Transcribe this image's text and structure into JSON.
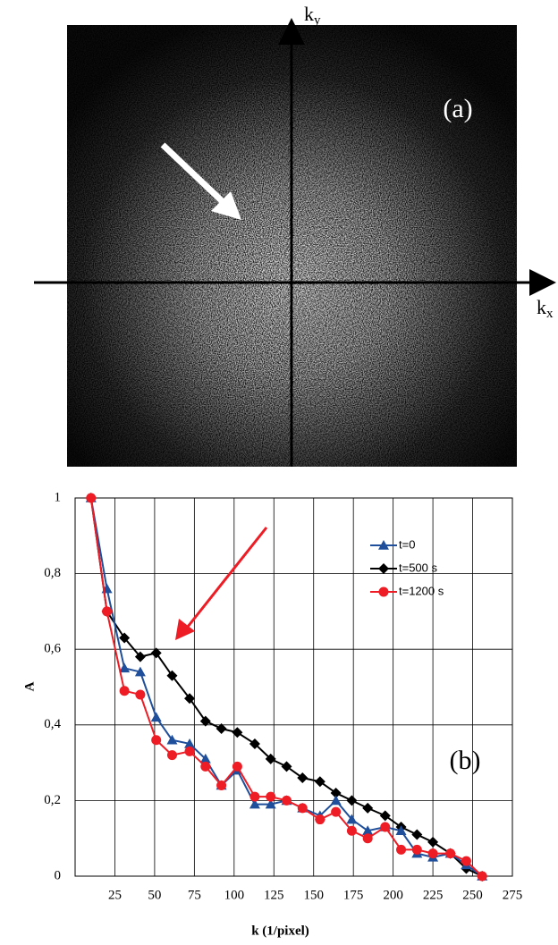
{
  "image_panel": {
    "label": "(a)",
    "x_axis_label": {
      "main": "k",
      "sub": "x"
    },
    "y_axis_label": {
      "main": "k",
      "sub": "y"
    }
  },
  "chart_data": {
    "type": "line",
    "annotation": "(b)",
    "x_label": "k (1/pixel)",
    "y_label": "A",
    "x": [
      10,
      20,
      31,
      41,
      51,
      61,
      72,
      82,
      92,
      102,
      113,
      123,
      133,
      143,
      154,
      164,
      174,
      184,
      195,
      205,
      215,
      225,
      236,
      246,
      256
    ],
    "series": [
      {
        "name": "t=0",
        "color": "#1f4e9a",
        "marker": "triangle",
        "values": [
          1.0,
          0.76,
          0.55,
          0.54,
          0.42,
          0.36,
          0.35,
          0.31,
          0.24,
          0.28,
          0.19,
          0.19,
          0.2,
          0.18,
          0.16,
          0.2,
          0.15,
          0.12,
          0.13,
          0.12,
          0.06,
          0.05,
          0.06,
          0.03,
          0
        ]
      },
      {
        "name": "t=500 s",
        "color": "#000000",
        "marker": "diamond",
        "values": [
          1.0,
          0.7,
          0.63,
          0.58,
          0.59,
          0.53,
          0.47,
          0.41,
          0.39,
          0.38,
          0.35,
          0.31,
          0.29,
          0.26,
          0.25,
          0.22,
          0.2,
          0.18,
          0.16,
          0.13,
          0.11,
          0.09,
          0.06,
          0.02,
          0
        ]
      },
      {
        "name": "t=1200 s",
        "color": "#ee1c24",
        "marker": "circle",
        "values": [
          1.0,
          0.7,
          0.49,
          0.48,
          0.36,
          0.32,
          0.33,
          0.29,
          0.24,
          0.29,
          0.21,
          0.21,
          0.2,
          0.18,
          0.15,
          0.17,
          0.12,
          0.1,
          0.13,
          0.07,
          0.07,
          0.06,
          0.06,
          0.04,
          0
        ]
      }
    ],
    "xlim": [
      0,
      275
    ],
    "xticks": [
      25,
      50,
      75,
      100,
      125,
      150,
      175,
      200,
      225,
      250,
      275
    ],
    "ylim": [
      0,
      1
    ],
    "yticks": [
      0,
      {
        "value": 0.2,
        "label": "0,2"
      },
      {
        "value": 0.4,
        "label": "0,4"
      },
      {
        "value": 0.6,
        "label": "0,6"
      },
      {
        "value": 0.8,
        "label": "0,8"
      },
      1
    ],
    "grid": true
  }
}
